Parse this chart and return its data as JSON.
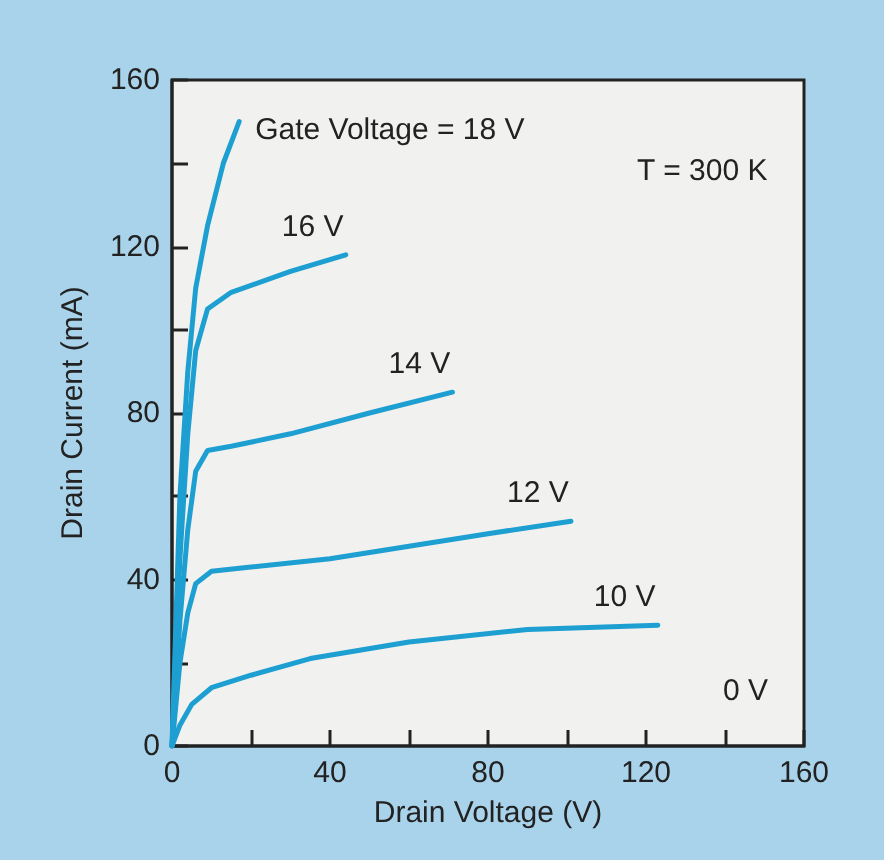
{
  "chart_data": {
    "type": "line",
    "xlabel": "Drain Voltage (V)",
    "ylabel": "Drain Current (mA)",
    "xlim": [
      0,
      160
    ],
    "ylim": [
      0,
      160
    ],
    "xticks": [
      0,
      {
        "value": 20,
        "label": null
      },
      40,
      {
        "value": 60,
        "label": null
      },
      80,
      {
        "value": 100,
        "label": null
      },
      120,
      {
        "value": 140,
        "label": null
      },
      160
    ],
    "yticks": [
      0,
      {
        "value": 20,
        "label": null
      },
      40,
      {
        "value": 60,
        "label": null
      },
      80,
      {
        "value": 100,
        "label": null
      },
      120,
      {
        "value": 140,
        "label": null
      },
      160
    ],
    "grid": false,
    "legend": false,
    "marker": "none",
    "line_style": "solid",
    "series": [
      {
        "name": "10 V",
        "color": "#1d9fd2",
        "x": [
          0,
          2,
          5,
          10,
          20,
          35,
          60,
          90,
          123
        ],
        "values": [
          0,
          5,
          10,
          14,
          17,
          21,
          25,
          28,
          29
        ]
      },
      {
        "name": "12 V",
        "color": "#1d9fd2",
        "x": [
          0,
          2,
          4,
          6,
          10,
          20,
          40,
          60,
          80,
          101
        ],
        "values": [
          0,
          20,
          32,
          39,
          42,
          43,
          45,
          48,
          51,
          54
        ]
      },
      {
        "name": "14 V",
        "color": "#1d9fd2",
        "x": [
          0,
          2,
          4,
          6,
          9,
          15,
          30,
          50,
          71
        ],
        "values": [
          0,
          30,
          52,
          66,
          71,
          72,
          75,
          80,
          85
        ]
      },
      {
        "name": "16 V",
        "color": "#1d9fd2",
        "x": [
          0,
          2,
          4,
          6,
          9,
          15,
          30,
          44
        ],
        "values": [
          0,
          45,
          75,
          95,
          105,
          109,
          114,
          118
        ]
      },
      {
        "name": "Gate Voltage = 18 V",
        "color": "#1d9fd2",
        "x": [
          0,
          2,
          4,
          6,
          9,
          13,
          17
        ],
        "values": [
          0,
          60,
          90,
          110,
          125,
          140,
          150
        ]
      }
    ],
    "annotations": [
      "T = 300 K",
      "0 V"
    ]
  }
}
